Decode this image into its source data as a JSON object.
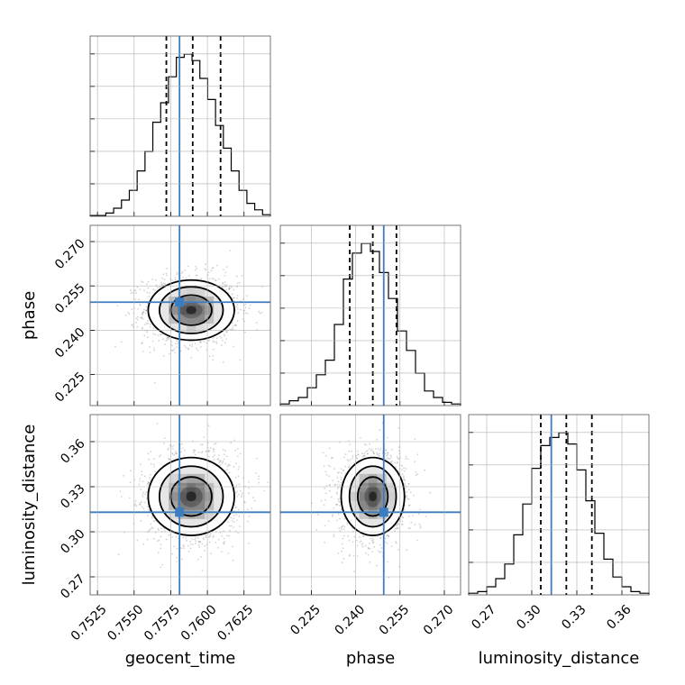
{
  "chart_data": {
    "type": "corner",
    "parameters": [
      "geocent_time",
      "phase",
      "luminosity_distance"
    ],
    "truth": {
      "geocent_time": 0.7581,
      "phase": 0.2495,
      "luminosity_distance": 0.313
    },
    "quantiles": {
      "geocent_time": [
        0.7572,
        0.759,
        0.7609
      ],
      "phase": [
        0.238,
        0.2458,
        0.2538
      ],
      "luminosity_distance": [
        0.306,
        0.323,
        0.34
      ]
    },
    "ranges": {
      "geocent_time": [
        0.752,
        0.7643
      ],
      "phase": [
        0.2145,
        0.2755
      ],
      "luminosity_distance": [
        0.258,
        0.378
      ]
    },
    "ticks": {
      "geocent_time": [
        "0.7525",
        "0.7550",
        "0.7575",
        "0.7600",
        "0.7625"
      ],
      "phase": [
        "0.225",
        "0.240",
        "0.255",
        "0.270"
      ],
      "luminosity_distance": [
        "0.27",
        "0.30",
        "0.33",
        "0.36"
      ]
    },
    "histograms": {
      "geocent_time": [
        0.005,
        0.005,
        0.02,
        0.05,
        0.1,
        0.16,
        0.28,
        0.4,
        0.58,
        0.7,
        0.86,
        0.98,
        1.0,
        0.96,
        0.85,
        0.72,
        0.56,
        0.42,
        0.28,
        0.16,
        0.08,
        0.04,
        0.01
      ],
      "phase": [
        0.01,
        0.03,
        0.05,
        0.11,
        0.19,
        0.28,
        0.5,
        0.78,
        0.94,
        1.0,
        0.95,
        0.82,
        0.66,
        0.46,
        0.34,
        0.2,
        0.09,
        0.05,
        0.02,
        0.01
      ],
      "luminosity_distance": [
        0.01,
        0.02,
        0.05,
        0.1,
        0.19,
        0.37,
        0.56,
        0.78,
        0.92,
        0.97,
        1.0,
        0.93,
        0.77,
        0.58,
        0.38,
        0.22,
        0.11,
        0.05,
        0.02,
        0.01
      ]
    },
    "joint_2d": [
      {
        "x": "geocent_time",
        "y": "phase",
        "center": [
          0.7589,
          0.2468
        ],
        "sigma": [
          0.0014,
          0.0051
        ]
      },
      {
        "x": "geocent_time",
        "y": "luminosity_distance",
        "center": [
          0.7589,
          0.3235
        ],
        "sigma": [
          0.0014,
          0.013
        ]
      },
      {
        "x": "phase",
        "y": "luminosity_distance",
        "center": [
          0.2458,
          0.3235
        ],
        "sigma": [
          0.0051,
          0.013
        ]
      }
    ],
    "grid": true
  }
}
